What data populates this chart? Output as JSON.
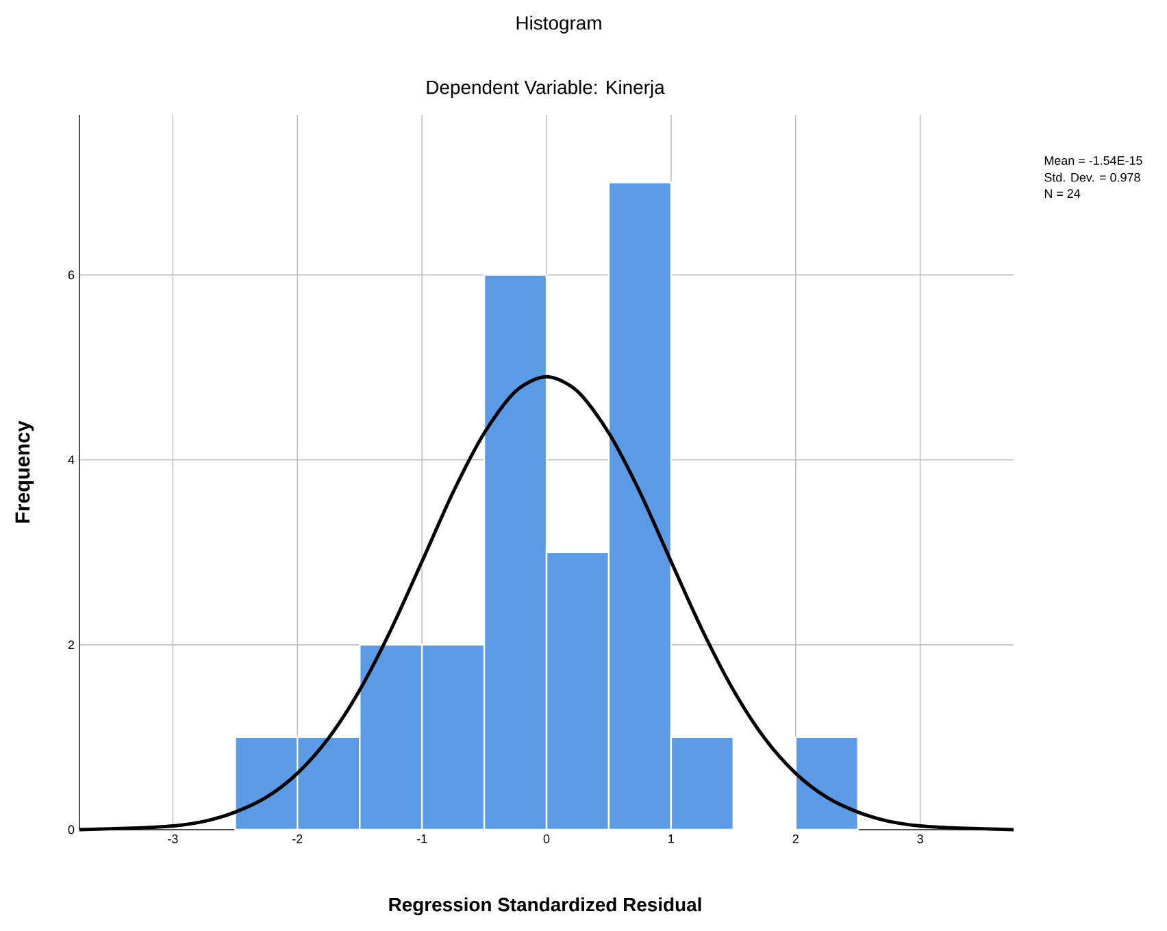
{
  "chart_data": {
    "type": "histogram",
    "title": "Histogram",
    "subtitle": "Dependent Variable: Kinerja",
    "xlabel": "Regression Standardized Residual",
    "ylabel": "Frequency",
    "bins": [
      -2.5,
      -2,
      -1.5,
      -1,
      -0.5,
      0,
      0.5,
      1,
      1.5,
      2,
      2.5
    ],
    "values": [
      1,
      1,
      2,
      2,
      6,
      3,
      7,
      1,
      0,
      1
    ],
    "color": "#5b9be5",
    "series": [
      {
        "type": "line",
        "color": "#000000",
        "x": [
          -3.75,
          -3.5,
          -3.25,
          -3,
          -2.75,
          -2.5,
          -2.25,
          -2,
          -1.75,
          -1.5,
          -1.25,
          -1,
          -0.75,
          -0.5,
          -0.25,
          0,
          0.25,
          0.5,
          0.75,
          1,
          1.25,
          1.5,
          1.75,
          2,
          2.25,
          2.5,
          2.75,
          3,
          3.25,
          3.5,
          3.75
        ],
        "values": [
          0,
          0.01,
          0.02,
          0.04,
          0.09,
          0.19,
          0.35,
          0.61,
          0.99,
          1.51,
          2.16,
          2.9,
          3.65,
          4.29,
          4.74,
          4.9,
          4.74,
          4.29,
          3.65,
          2.9,
          2.16,
          1.51,
          0.99,
          0.61,
          0.35,
          0.19,
          0.09,
          0.04,
          0.02,
          0.01,
          0
        ]
      }
    ],
    "xlim": [
      -3.75,
      3.75
    ],
    "ylim": [
      0,
      7.73
    ],
    "xticks": [
      -3,
      -2,
      -1,
      0,
      1,
      2,
      3
    ],
    "yticks": [
      0,
      2,
      4,
      6
    ],
    "grid": true,
    "annotations": [
      "Mean = -1.54E-15",
      "Std. Dev. = 0.978",
      "N = 24"
    ]
  }
}
